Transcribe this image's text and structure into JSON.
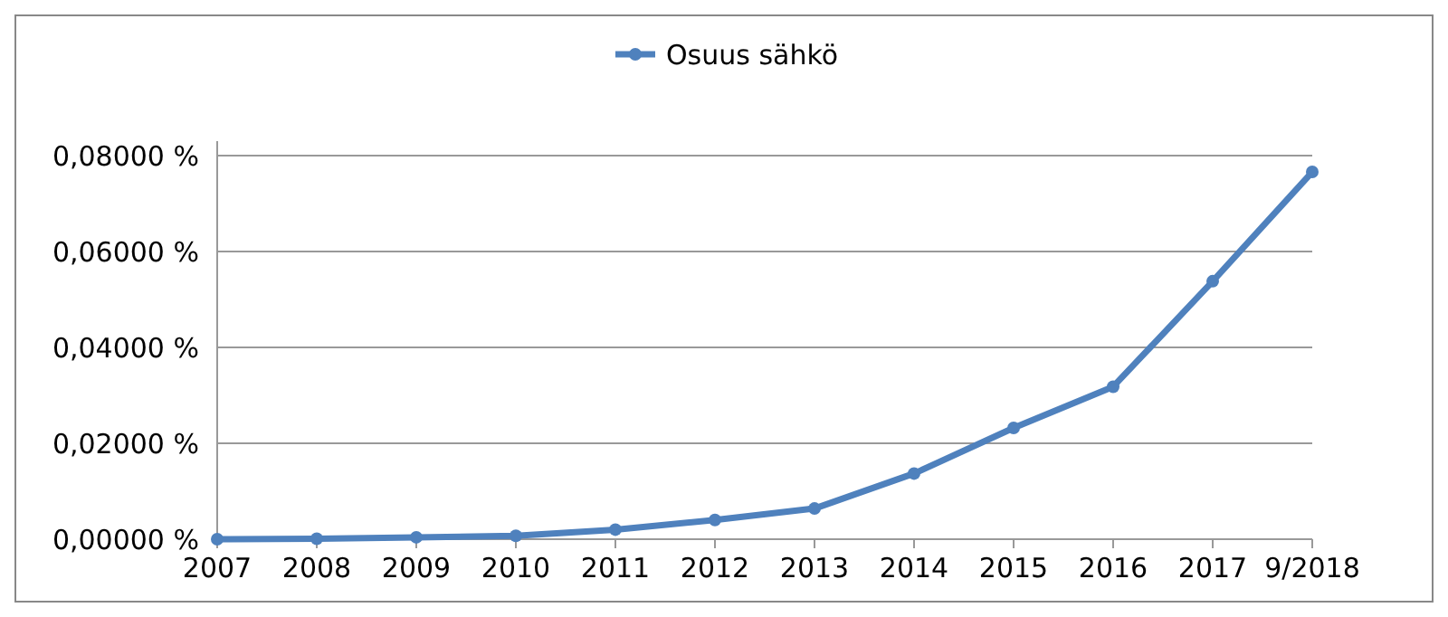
{
  "chart_data": {
    "type": "line",
    "categories": [
      "2007",
      "2008",
      "2009",
      "2010",
      "2011",
      "2012",
      "2013",
      "2014",
      "2015",
      "2016",
      "2017",
      "9/2018"
    ],
    "series": [
      {
        "name": "Osuus sähkö",
        "color": "#4f81bd",
        "values": [
          0,
          0.0001,
          0.0004,
          0.0007,
          0.002,
          0.004,
          0.0064,
          0.0137,
          0.0232,
          0.0318,
          0.0538,
          0.0766
        ]
      }
    ],
    "ylim": [
      0,
      0.08
    ],
    "yticks": [
      {
        "value": 0,
        "label": "0,00000 %"
      },
      {
        "value": 0.02,
        "label": "0,02000 %"
      },
      {
        "value": 0.04,
        "label": "0,04000 %"
      },
      {
        "value": 0.06,
        "label": "0,06000 %"
      },
      {
        "value": 0.08,
        "label": "0,08000 %"
      }
    ],
    "grid": "y",
    "legend": "top",
    "marker": "circle",
    "line_style": "solid"
  }
}
